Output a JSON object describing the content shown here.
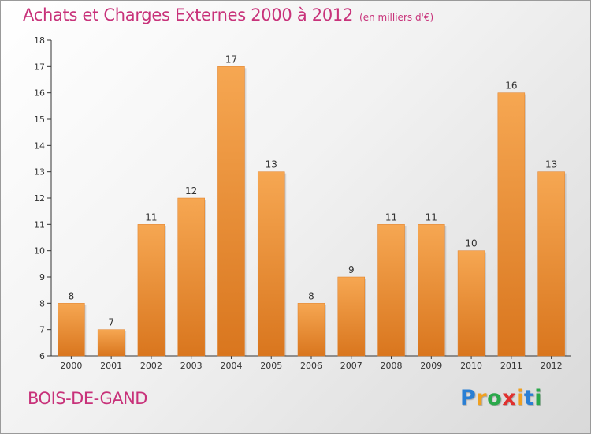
{
  "chart_data": {
    "type": "bar",
    "title": "Achats et Charges Externes 2000 à 2012",
    "unit_label": "(en milliers d'€)",
    "categories": [
      "2000",
      "2001",
      "2002",
      "2003",
      "2004",
      "2005",
      "2006",
      "2007",
      "2008",
      "2009",
      "2010",
      "2011",
      "2012"
    ],
    "values": [
      8,
      7,
      11,
      12,
      17,
      13,
      8,
      9,
      11,
      11,
      10,
      16,
      13
    ],
    "ylim": [
      6,
      18
    ],
    "yticks": [
      6,
      7,
      8,
      9,
      10,
      11,
      12,
      13,
      14,
      15,
      16,
      17,
      18
    ],
    "grid": false,
    "xlabel": "",
    "ylabel": "",
    "bar_color": "#ee8f35",
    "bar_color_light": "#f6a752",
    "bar_color_dark": "#d9761e"
  },
  "footer": {
    "commune": "BOIS-DE-GAND",
    "logo_letters": [
      "P",
      "r",
      "o",
      "x",
      "i",
      "t",
      "i"
    ],
    "logo_colors": [
      "#2a7fd4",
      "#f0a020",
      "#2aa84a",
      "#e0302e",
      "#f0a020",
      "#2a7fd4",
      "#2aa84a"
    ]
  },
  "colors": {
    "accent": "#c8327a"
  }
}
